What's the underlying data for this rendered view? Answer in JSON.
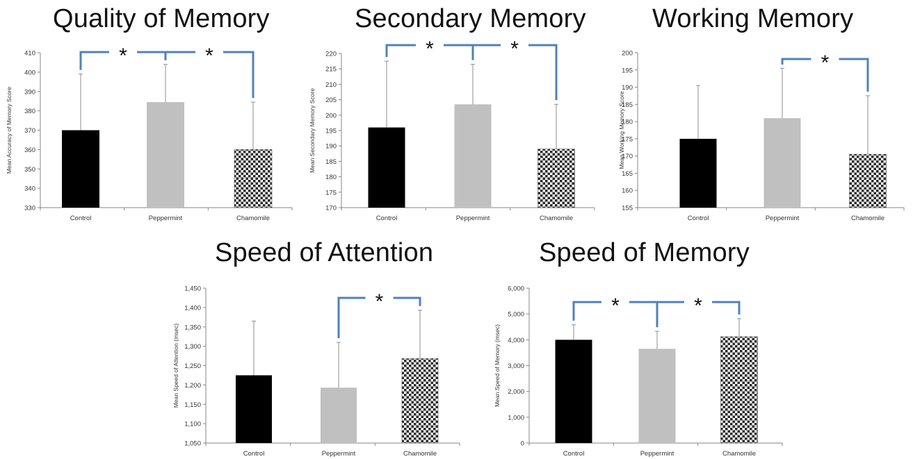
{
  "colors": {
    "control": "#000000",
    "peppermint": "#c0c0c0",
    "chamomile_pattern": "checkered",
    "bracket": "#4f81bd",
    "axis": "#868686",
    "errorbar": "#8c8c8c"
  },
  "chart_data": [
    {
      "type": "bar",
      "title": "Quality of Memory",
      "ylabel": "Mean Accuracy of Memory Score",
      "categories": [
        "Control",
        "Peppermint",
        "Chamomile"
      ],
      "values": [
        370,
        384.5,
        360
      ],
      "error_upper": [
        399,
        404,
        384.5
      ],
      "ylim": [
        330,
        410
      ],
      "yticks": [
        330,
        340,
        350,
        360,
        370,
        380,
        390,
        400,
        410
      ],
      "ytick_labels": [
        "330",
        "340",
        "350",
        "360",
        "370",
        "380",
        "390",
        "400",
        "410"
      ],
      "brackets": [
        {
          "from": "Control",
          "to": "Peppermint",
          "label": "*"
        },
        {
          "from": "Peppermint",
          "to": "Chamomile",
          "label": "*"
        }
      ]
    },
    {
      "type": "bar",
      "title": "Secondary Memory",
      "ylabel": "Mean Secondary Memory Score",
      "categories": [
        "Control",
        "Peppermint",
        "Chamomile"
      ],
      "values": [
        196,
        203.5,
        189
      ],
      "error_upper": [
        217.5,
        216.5,
        203.5
      ],
      "ylim": [
        170,
        220
      ],
      "yticks": [
        170,
        175,
        180,
        185,
        190,
        195,
        200,
        205,
        210,
        215,
        220
      ],
      "ytick_labels": [
        "170",
        "175",
        "180",
        "185",
        "190",
        "195",
        "200",
        "205",
        "210",
        "215",
        "220"
      ],
      "brackets": [
        {
          "from": "Control",
          "to": "Peppermint",
          "label": "*"
        },
        {
          "from": "Peppermint",
          "to": "Chamomile",
          "label": "*"
        }
      ]
    },
    {
      "type": "bar",
      "title": "Working Memory",
      "ylabel": "Mean Working Memory Score",
      "categories": [
        "Control",
        "Peppermint",
        "Chamomile"
      ],
      "values": [
        175,
        181,
        170.5
      ],
      "error_upper": [
        190.5,
        195.5,
        187.5
      ],
      "ylim": [
        155,
        200
      ],
      "yticks": [
        155,
        160,
        165,
        170,
        175,
        180,
        185,
        190,
        195,
        200
      ],
      "ytick_labels": [
        "155",
        "160",
        "165",
        "170",
        "175",
        "180",
        "185",
        "190",
        "195",
        "200"
      ],
      "brackets": [
        {
          "from": "Peppermint",
          "to": "Chamomile",
          "label": "*"
        }
      ]
    },
    {
      "type": "bar",
      "title": "Speed of Attention",
      "ylabel": "Mean Speed of Attention (msec)",
      "categories": [
        "Control",
        "Peppermint",
        "Chamomile"
      ],
      "values": [
        1225,
        1193,
        1268
      ],
      "error_upper": [
        1365,
        1310,
        1393
      ],
      "ylim": [
        1050,
        1450
      ],
      "yticks": [
        1050,
        1100,
        1150,
        1200,
        1250,
        1300,
        1350,
        1400,
        1450
      ],
      "ytick_labels": [
        "1,050",
        "1,100",
        "1,150",
        "1,200",
        "1,250",
        "1,300",
        "1,350",
        "1,400",
        "1,450"
      ],
      "brackets": [
        {
          "from": "Peppermint",
          "to": "Chamomile",
          "label": "*"
        }
      ]
    },
    {
      "type": "bar",
      "title": "Speed of Memory",
      "ylabel": "Mean Speed of Memory (msec)",
      "categories": [
        "Control",
        "Peppermint",
        "Chamomile"
      ],
      "values": [
        4000,
        3650,
        4120
      ],
      "error_upper": [
        4580,
        4330,
        4820
      ],
      "ylim": [
        0,
        6000
      ],
      "yticks": [
        0,
        1000,
        2000,
        3000,
        4000,
        5000,
        6000
      ],
      "ytick_labels": [
        "0",
        "1,000",
        "2,000",
        "3,000",
        "4,000",
        "5,000",
        "6,000"
      ],
      "brackets": [
        {
          "from": "Control",
          "to": "Peppermint",
          "label": "*"
        },
        {
          "from": "Peppermint",
          "to": "Chamomile",
          "label": "*"
        }
      ]
    }
  ]
}
